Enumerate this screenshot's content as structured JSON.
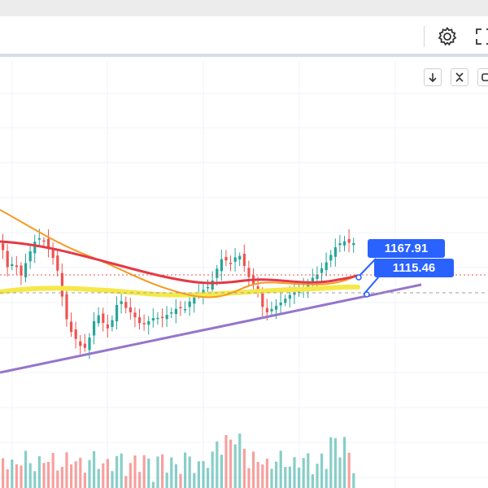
{
  "toolbar": {
    "settings_icon": "gear-icon",
    "fullscreen_icon": "fullscreen-icon"
  },
  "chart_controls": {
    "scroll_icon": "arrow-down-icon",
    "collapse_icon": "collapse-icon",
    "restore_icon": "restore-icon"
  },
  "price_labels": {
    "upper": "1167.91",
    "lower": "1115.46"
  },
  "colors": {
    "up_candle": "#26a69a",
    "down_candle": "#ef5350",
    "ma_red": "#e53946",
    "ma_orange": "#f59a23",
    "ma_yellow": "#f5e94a",
    "trendline": "#9575cd",
    "label_bg": "#2962ff"
  },
  "chart_data": {
    "type": "candlestick",
    "price_markers": [
      1167.91,
      1115.46
    ],
    "series": [
      {
        "kind": "candles"
      },
      {
        "kind": "volume"
      },
      {
        "kind": "moving-average",
        "color": "#e53946"
      },
      {
        "kind": "moving-average",
        "color": "#f59a23"
      },
      {
        "kind": "moving-average",
        "color": "#f5e94a"
      },
      {
        "kind": "trendline",
        "color": "#9575cd"
      }
    ]
  }
}
